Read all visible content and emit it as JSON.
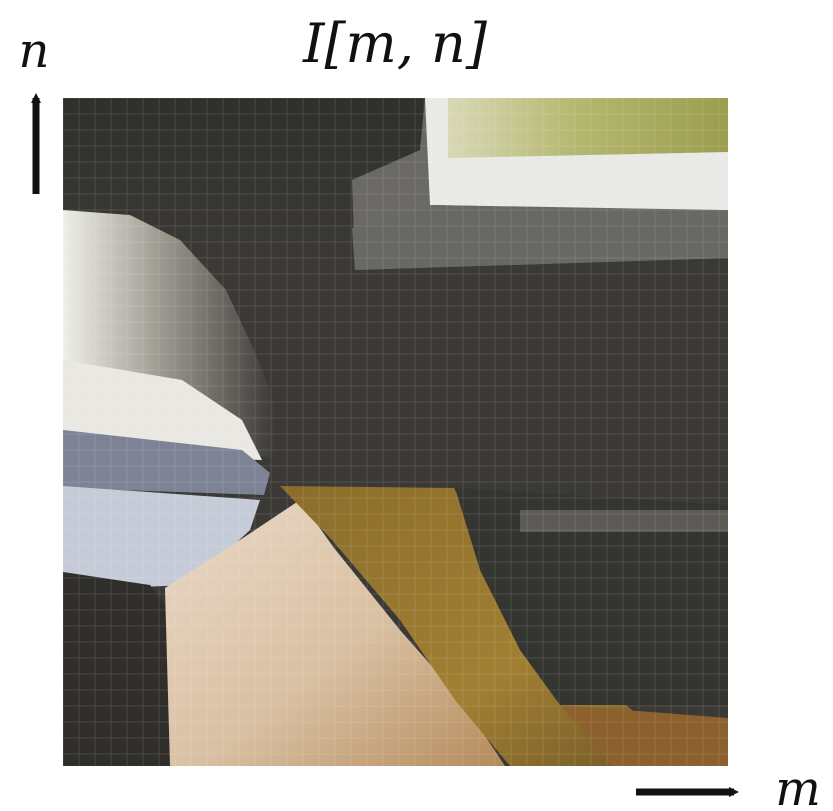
{
  "figure": {
    "title": "I[m, n]",
    "vertical_axis_label": "n",
    "horizontal_axis_label": "m"
  },
  "image": {
    "description_colors": {
      "dark_gray": "#3c3b36",
      "charcoal": "#2f2e2b",
      "light_gray": "#c8c8c8",
      "off_white": "#eceae6",
      "blue_gray": "#7b7f93",
      "pale_blue": "#c5cad8",
      "tan": "#e2cbb0",
      "peach": "#e8d2bd",
      "ochre": "#a2812f",
      "olive": "#8e8a34",
      "yellow_green": "#c9cd98",
      "brown": "#7a5522"
    }
  }
}
